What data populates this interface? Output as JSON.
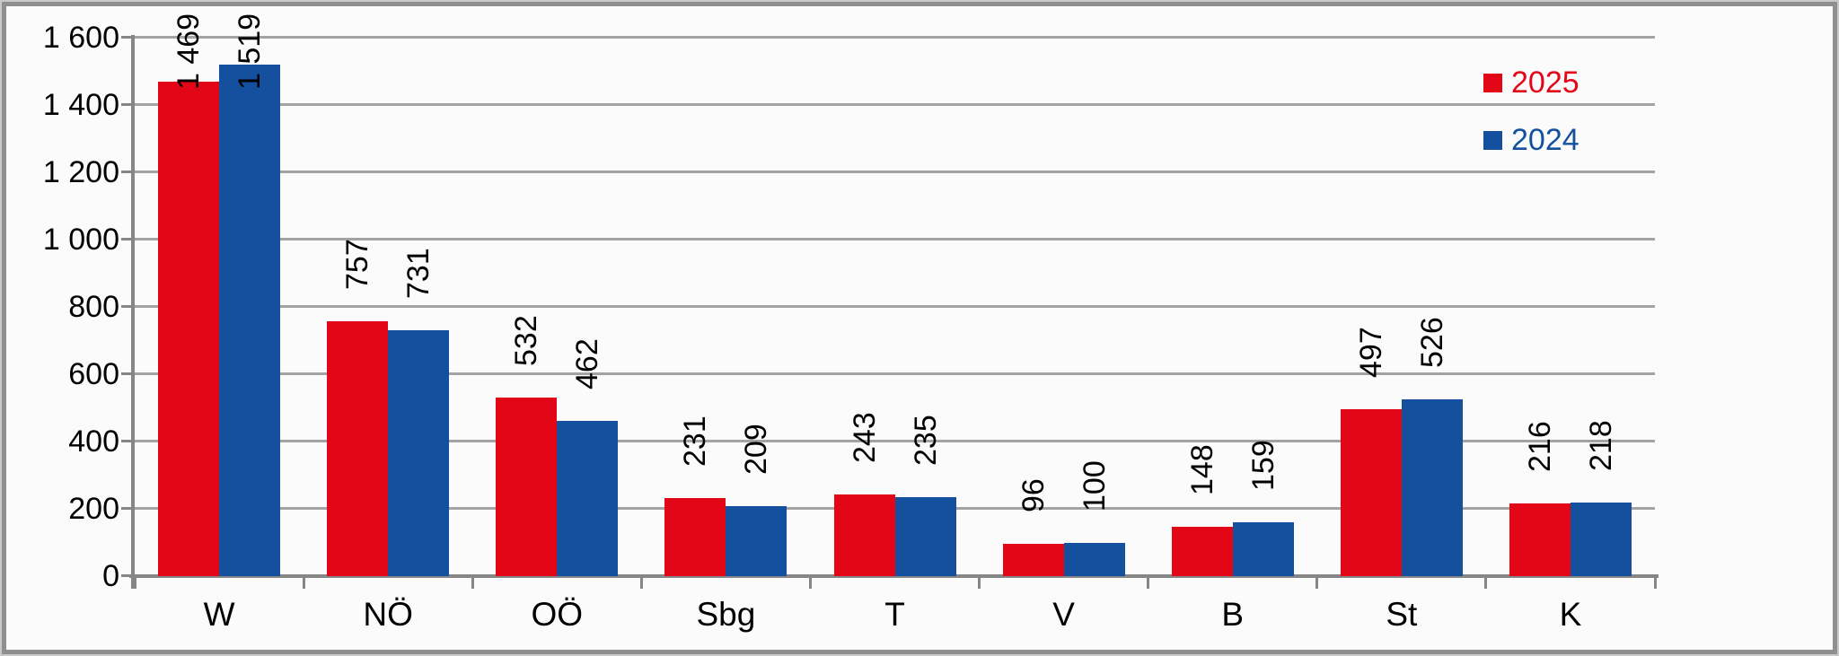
{
  "chart_data": {
    "type": "bar",
    "title": "",
    "categories": [
      "W",
      "NÖ",
      "OÖ",
      "Sbg",
      "T",
      "V",
      "B",
      "St",
      "K"
    ],
    "series": [
      {
        "name": "2025",
        "color": "#e30617",
        "values": [
          1469,
          757,
          532,
          231,
          243,
          96,
          148,
          497,
          216
        ],
        "labels": [
          "1 469",
          "757",
          "532",
          "231",
          "243",
          "96",
          "148",
          "497",
          "216"
        ]
      },
      {
        "name": "2024",
        "color": "#14509e",
        "values": [
          1519,
          731,
          462,
          209,
          235,
          100,
          159,
          526,
          218
        ],
        "labels": [
          "1 519",
          "731",
          "462",
          "209",
          "235",
          "100",
          "159",
          "526",
          "218"
        ]
      }
    ],
    "ylim": [
      0,
      1600
    ],
    "ytick_step": 200,
    "ytick_labels": [
      "0",
      "200",
      "400",
      "600",
      "800",
      "1 000",
      "1 200",
      "1 400",
      "1 600"
    ],
    "grid": true,
    "legend_position": "top-right",
    "value_label_rotation": -90,
    "bar_label_position": "outside-end-rotated"
  },
  "colors": {
    "grid": "#a3a3a3",
    "axis": "#868686",
    "frame": "#8f8f8f",
    "background": "#fbfbfb",
    "text": "#000000",
    "series_2025": "#e30617",
    "series_2024": "#14509e"
  }
}
